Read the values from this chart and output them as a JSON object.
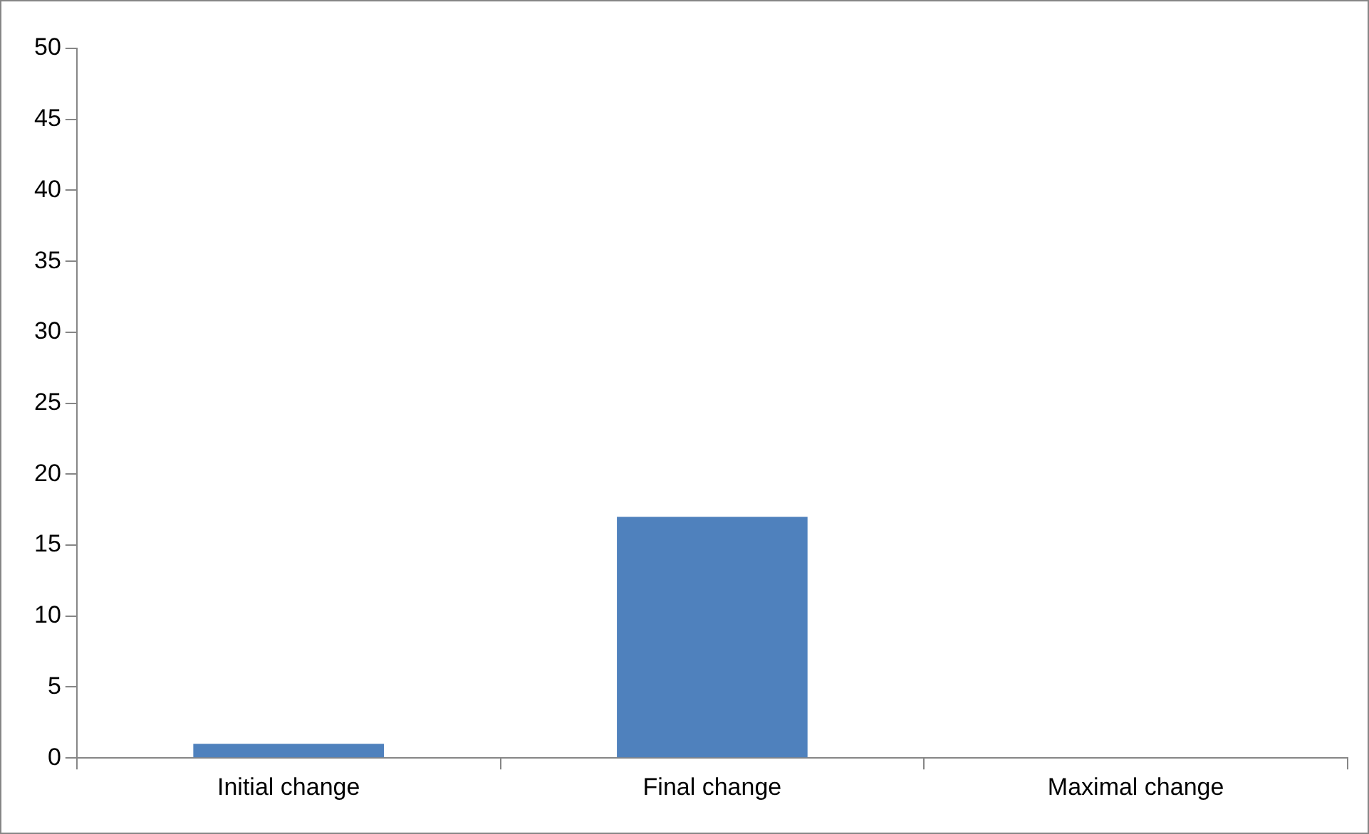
{
  "chart_data": {
    "type": "bar",
    "categories": [
      "Initial change",
      "Final change",
      "Maximal change"
    ],
    "values": [
      1,
      17,
      0
    ],
    "color": "#4f81bd",
    "ylim": [
      0,
      50
    ],
    "yticks": [
      0,
      5,
      10,
      15,
      20,
      25,
      30,
      35,
      40,
      45,
      50
    ],
    "grid": false,
    "legend": false
  }
}
